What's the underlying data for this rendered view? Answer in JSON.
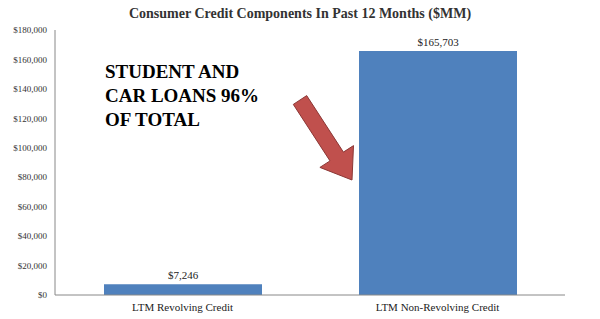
{
  "chart_data": {
    "type": "bar",
    "title": "Consumer Credit Components In Past 12 Months ($MM)",
    "categories": [
      "LTM Revolving Credit",
      "LTM Non-Revolving Credit"
    ],
    "values": [
      7246,
      165703
    ],
    "value_labels": [
      "$7,246",
      "$165,703"
    ],
    "data_labels": true,
    "color": "#4f81bd",
    "ylim": [
      0,
      180000
    ],
    "yticks": [
      {
        "value": 0,
        "label": "$0"
      },
      {
        "value": 20000,
        "label": "$20,000"
      },
      {
        "value": 40000,
        "label": "$40,000"
      },
      {
        "value": 60000,
        "label": "$60,000"
      },
      {
        "value": 80000,
        "label": "$80,000"
      },
      {
        "value": 100000,
        "label": "$100,000"
      },
      {
        "value": 120000,
        "label": "$120,000"
      },
      {
        "value": 140000,
        "label": "$140,000"
      },
      {
        "value": 160000,
        "label": "$160,000"
      },
      {
        "value": 180000,
        "label": "$180,000"
      }
    ],
    "grid": false,
    "annotation": [
      "STUDENT AND",
      "CAR LOANS 96%",
      "OF TOTAL"
    ]
  }
}
